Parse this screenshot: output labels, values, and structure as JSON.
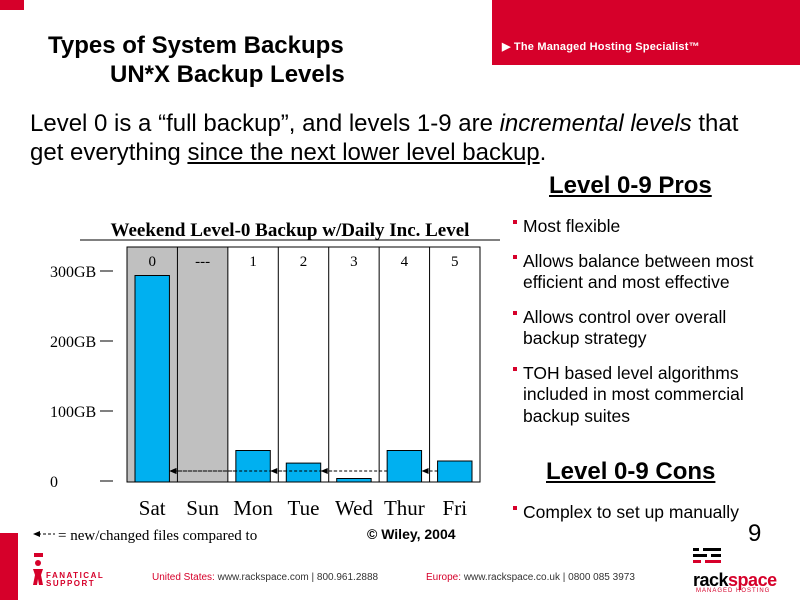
{
  "header": {
    "banner_text": "▶ The Managed Hosting Specialist™",
    "title_line1": "Types of System Backups",
    "title_line2": "UN*X Backup Levels"
  },
  "intro": {
    "part1": "Level 0 is a “full backup”, and levels 1-9 are ",
    "italic1": "incremental levels",
    "part2": " that get everything ",
    "underlined": "since the next lower level backup",
    "part3": "."
  },
  "pros": {
    "title": "Level 0-9 Pros",
    "items": [
      "Most flexible",
      "Allows balance between most efficient and most effective",
      "Allows control over overall backup strategy",
      "TOH based level algorithms included in most commercial backup suites"
    ]
  },
  "cons": {
    "title": "Level 0-9 Cons",
    "items": [
      "Complex to set up manually"
    ]
  },
  "copyright": "© Wiley, 2004",
  "page_number": "9",
  "legend_text": "= new/changed files compared to",
  "chart_data": {
    "type": "bar",
    "title": "Weekend Level-0 Backup w/Daily Inc. Level",
    "categories": [
      "Sat",
      "Sun",
      "Mon",
      "Tue",
      "Wed",
      "Thur",
      "Fri"
    ],
    "levels": [
      "0",
      "---",
      "1",
      "2",
      "3",
      "4",
      "5"
    ],
    "values": [
      295,
      0,
      45,
      27,
      5,
      45,
      30
    ],
    "y_ticks": [
      "300GB",
      "200GB",
      "100GB",
      "0"
    ],
    "ylim": [
      0,
      300
    ],
    "shaded_categories": [
      "Sat",
      "Sun"
    ],
    "bar_color": "#00b0f0",
    "shade_color": "#c0c0c0"
  },
  "footer": {
    "us_label": "United States:",
    "us_site": "www.rackspace.com",
    "us_phone": "800.961.2888",
    "eu_label": "Europe:",
    "eu_site": "www.rackspace.co.uk",
    "eu_phone": "0800 085 3973",
    "fanatical_line1": "FANATICAL",
    "fanatical_line2": "SUPPORT",
    "rack_word1": "rack",
    "rack_word2": "space",
    "rack_sub": "MANAGED HOSTING"
  },
  "colors": {
    "brand_red": "#d6002a",
    "bar_blue": "#00b0f0"
  }
}
